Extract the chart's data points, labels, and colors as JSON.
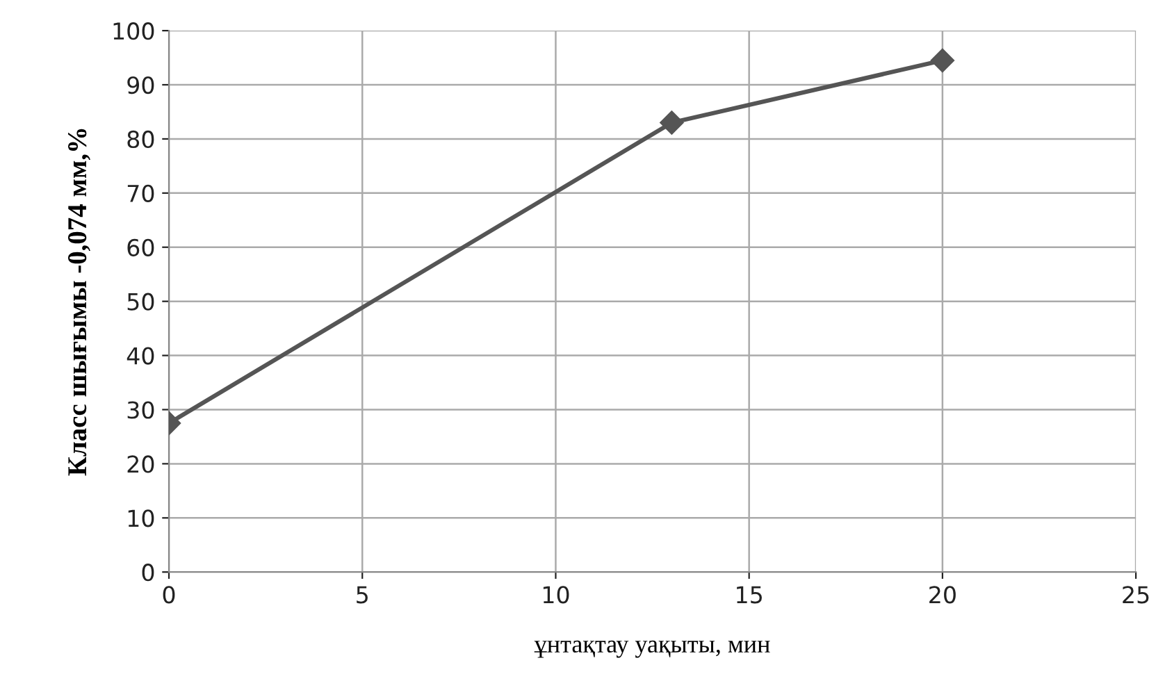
{
  "chart_data": {
    "type": "line",
    "xlabel": "ұнтақтау уақыты, мин",
    "ylabel": "Класс шығымы -0,074 мм,%",
    "x": [
      0,
      13,
      20
    ],
    "series": [
      {
        "color": "#555555",
        "values": [
          27.5,
          83,
          94.5
        ]
      }
    ],
    "xlim": [
      0,
      25
    ],
    "xticks": [
      0,
      5,
      10,
      15,
      20,
      25
    ],
    "ylim": [
      0,
      100
    ],
    "yticks": [
      0,
      10,
      20,
      30,
      40,
      50,
      60,
      70,
      80,
      90,
      100
    ],
    "grid": true,
    "marker": "diamond",
    "line_style": "solid"
  }
}
